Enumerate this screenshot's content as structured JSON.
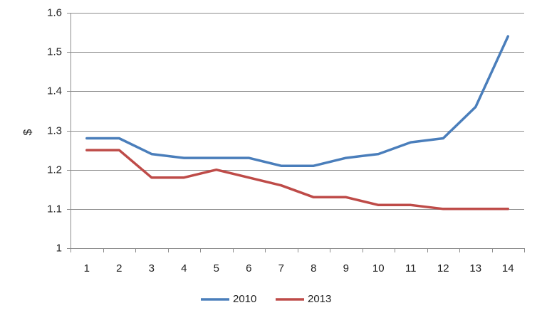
{
  "chart_data": {
    "type": "line",
    "title": "",
    "xlabel": "",
    "ylabel": "$",
    "x": [
      1,
      2,
      3,
      4,
      5,
      6,
      7,
      8,
      9,
      10,
      11,
      12,
      13,
      14
    ],
    "ylim": [
      1,
      1.6
    ],
    "yticks": [
      1,
      1.1,
      1.2,
      1.3,
      1.4,
      1.5,
      1.6
    ],
    "ytick_labels": [
      "1",
      "1.1",
      "1.2",
      "1.3",
      "1.4",
      "1.5",
      "1.6"
    ],
    "grid": "horizontal",
    "legend_position": "bottom",
    "series": [
      {
        "name": "2010",
        "color": "#4a7ebb",
        "values": [
          1.28,
          1.28,
          1.24,
          1.23,
          1.23,
          1.23,
          1.21,
          1.21,
          1.23,
          1.24,
          1.27,
          1.28,
          1.36,
          1.54
        ]
      },
      {
        "name": "2013",
        "color": "#be4b48",
        "values": [
          1.25,
          1.25,
          1.18,
          1.18,
          1.2,
          1.18,
          1.16,
          1.13,
          1.13,
          1.11,
          1.11,
          1.1,
          1.1,
          1.1
        ]
      }
    ]
  }
}
